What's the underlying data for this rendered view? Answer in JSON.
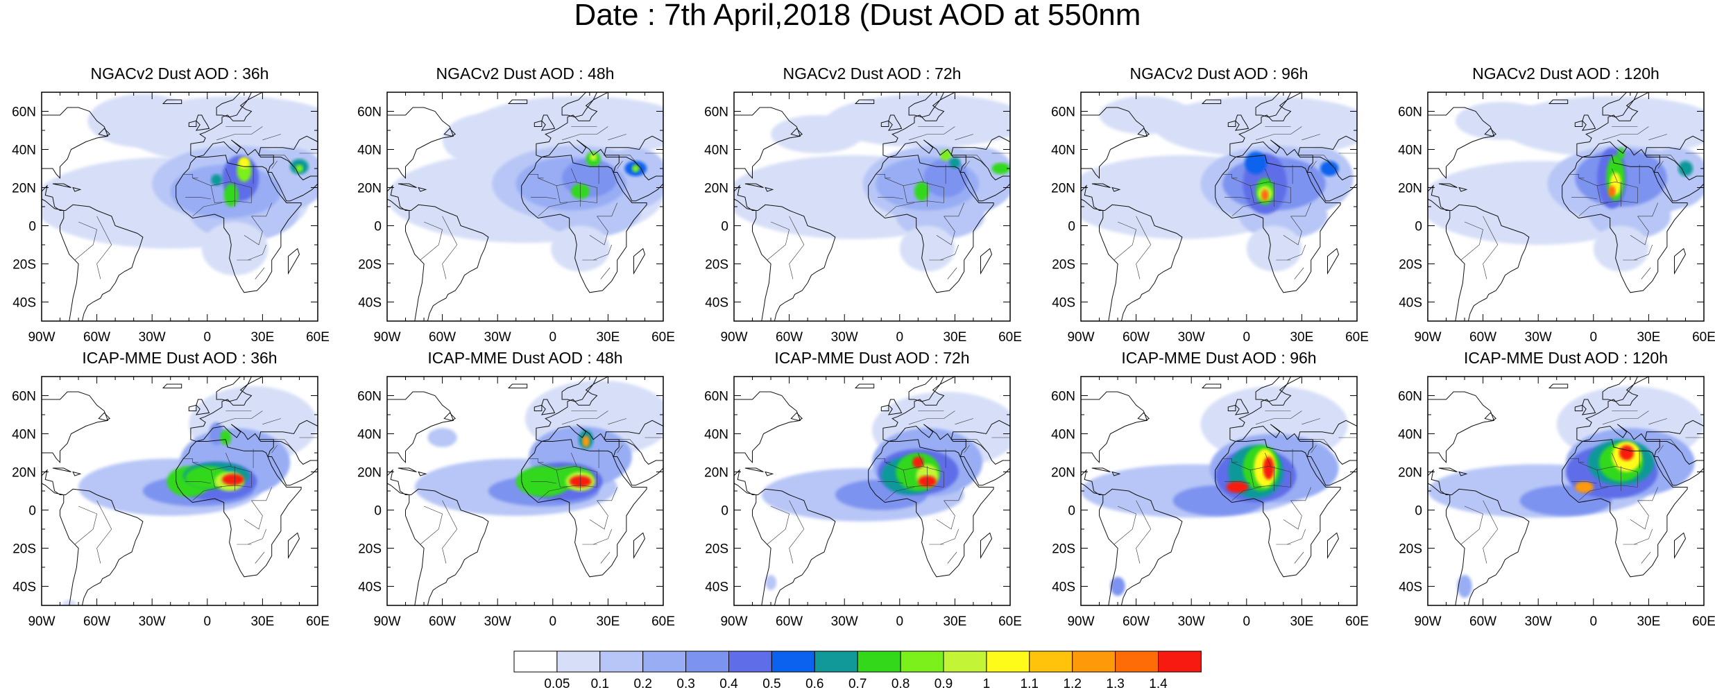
{
  "title": "Date : 7th April,2018 (Dust AOD at 550nm",
  "panels": [
    {
      "title": "NGACv2 Dust AOD : 36h"
    },
    {
      "title": "NGACv2 Dust AOD : 48h"
    },
    {
      "title": "NGACv2 Dust AOD : 72h"
    },
    {
      "title": "NGACv2 Dust AOD : 96h"
    },
    {
      "title": "NGACv2 Dust AOD : 120h"
    },
    {
      "title": "ICAP-MME Dust AOD : 36h"
    },
    {
      "title": "ICAP-MME Dust AOD : 48h"
    },
    {
      "title": "ICAP-MME Dust AOD : 72h"
    },
    {
      "title": "ICAP-MME Dust AOD : 96h"
    },
    {
      "title": "ICAP-MME Dust AOD : 120h"
    }
  ],
  "axes": {
    "lon_range": [
      -90,
      60
    ],
    "lat_range": [
      -50,
      70
    ],
    "lon_ticks": [
      "90W",
      "60W",
      "30W",
      "0",
      "30E",
      "60E"
    ],
    "lon_values": [
      -90,
      -60,
      -30,
      0,
      30,
      60
    ],
    "lat_ticks": [
      "60N",
      "40N",
      "20N",
      "0",
      "20S",
      "40S"
    ],
    "lat_values": [
      60,
      40,
      20,
      0,
      -20,
      -40
    ]
  },
  "colorbar": {
    "labels": [
      "0.05",
      "0.1",
      "0.2",
      "0.3",
      "0.4",
      "0.5",
      "0.6",
      "0.7",
      "0.8",
      "0.9",
      "1",
      "1.1",
      "1.2",
      "1.3",
      "1.4"
    ],
    "colors": [
      "#ffffff",
      "#d7dff8",
      "#b7c6f6",
      "#98adf4",
      "#7d93f0",
      "#5f6ee8",
      "#0b62ee",
      "#119999",
      "#33d81b",
      "#7cf01b",
      "#c3f536",
      "#fefa1a",
      "#fec30a",
      "#fe9a0a",
      "#fe6c08",
      "#f71a10"
    ]
  }
}
